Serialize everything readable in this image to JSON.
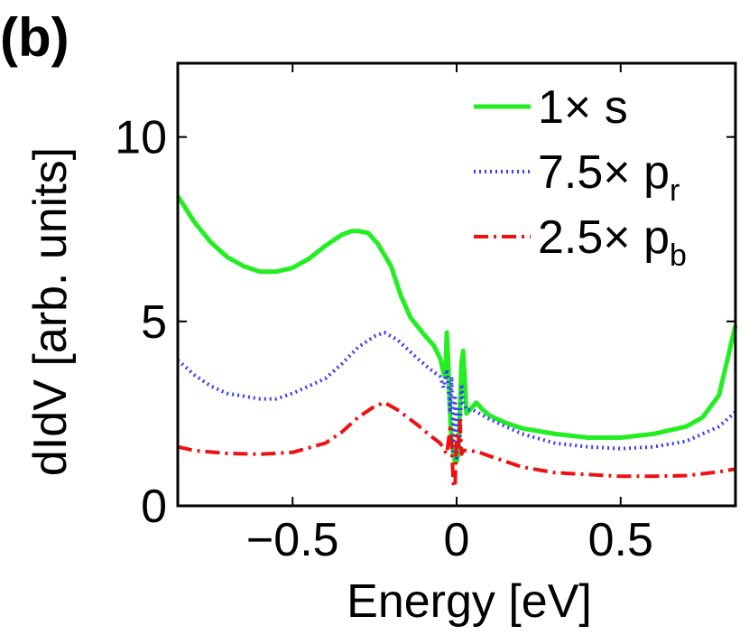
{
  "panel_label": "(b)",
  "chart_data": {
    "type": "line",
    "xlabel": "Energy [eV]",
    "ylabel": "dIdV [arb. units]",
    "xlim": [
      -0.85,
      0.85
    ],
    "ylim": [
      0,
      12
    ],
    "xticks": [
      {
        "value": -0.5,
        "label": "−0.5"
      },
      {
        "value": 0,
        "label": "0"
      },
      {
        "value": 0.5,
        "label": "0.5"
      }
    ],
    "yticks": [
      {
        "value": 0,
        "label": "0"
      },
      {
        "value": 5,
        "label": "5"
      },
      {
        "value": 10,
        "label": "10"
      }
    ],
    "grid": false,
    "legend_position": "top-right",
    "series": [
      {
        "name": "1× s",
        "legend_main": "1× s",
        "legend_sub": "",
        "color": "#22ee22",
        "style": "solid",
        "points": [
          [
            -0.85,
            8.4
          ],
          [
            -0.8,
            7.7
          ],
          [
            -0.75,
            7.15
          ],
          [
            -0.7,
            6.75
          ],
          [
            -0.65,
            6.5
          ],
          [
            -0.6,
            6.35
          ],
          [
            -0.55,
            6.35
          ],
          [
            -0.5,
            6.45
          ],
          [
            -0.45,
            6.7
          ],
          [
            -0.4,
            7.05
          ],
          [
            -0.35,
            7.35
          ],
          [
            -0.32,
            7.45
          ],
          [
            -0.3,
            7.45
          ],
          [
            -0.27,
            7.4
          ],
          [
            -0.24,
            7.1
          ],
          [
            -0.2,
            6.5
          ],
          [
            -0.17,
            5.7
          ],
          [
            -0.14,
            5.1
          ],
          [
            -0.1,
            4.65
          ],
          [
            -0.07,
            4.35
          ],
          [
            -0.05,
            4.0
          ],
          [
            -0.04,
            3.6
          ],
          [
            -0.035,
            3.5
          ],
          [
            -0.03,
            4.7
          ],
          [
            -0.025,
            3.8
          ],
          [
            -0.02,
            2.5
          ],
          [
            -0.015,
            1.7
          ],
          [
            -0.01,
            1.4
          ],
          [
            -0.005,
            1.2
          ],
          [
            0.0,
            1.2
          ],
          [
            0.005,
            1.4
          ],
          [
            0.01,
            2.6
          ],
          [
            0.015,
            3.9
          ],
          [
            0.02,
            4.2
          ],
          [
            0.025,
            3.4
          ],
          [
            0.03,
            2.5
          ],
          [
            0.04,
            2.6
          ],
          [
            0.05,
            2.7
          ],
          [
            0.06,
            2.8
          ],
          [
            0.08,
            2.6
          ],
          [
            0.1,
            2.45
          ],
          [
            0.15,
            2.25
          ],
          [
            0.2,
            2.1
          ],
          [
            0.3,
            1.95
          ],
          [
            0.4,
            1.85
          ],
          [
            0.5,
            1.85
          ],
          [
            0.6,
            1.95
          ],
          [
            0.7,
            2.15
          ],
          [
            0.75,
            2.4
          ],
          [
            0.8,
            3.0
          ],
          [
            0.85,
            4.9
          ]
        ]
      },
      {
        "name": "7.5× p_r",
        "legend_main": "7.5× p",
        "legend_sub": "r",
        "color": "#3b3bff",
        "style": "dotted",
        "points": [
          [
            -0.85,
            3.95
          ],
          [
            -0.8,
            3.55
          ],
          [
            -0.75,
            3.25
          ],
          [
            -0.7,
            3.05
          ],
          [
            -0.6,
            2.9
          ],
          [
            -0.55,
            2.9
          ],
          [
            -0.5,
            3.05
          ],
          [
            -0.4,
            3.45
          ],
          [
            -0.35,
            3.85
          ],
          [
            -0.3,
            4.3
          ],
          [
            -0.25,
            4.6
          ],
          [
            -0.22,
            4.7
          ],
          [
            -0.18,
            4.5
          ],
          [
            -0.12,
            4.0
          ],
          [
            -0.08,
            3.7
          ],
          [
            -0.05,
            3.5
          ],
          [
            -0.04,
            3.2
          ],
          [
            -0.03,
            3.7
          ],
          [
            -0.02,
            2.6
          ],
          [
            -0.015,
            3.5
          ],
          [
            -0.01,
            1.4
          ],
          [
            -0.005,
            3.0
          ],
          [
            0.0,
            1.3
          ],
          [
            0.005,
            2.7
          ],
          [
            0.01,
            1.6
          ],
          [
            0.015,
            3.3
          ],
          [
            0.02,
            2.8
          ],
          [
            0.03,
            2.6
          ],
          [
            0.05,
            2.6
          ],
          [
            0.1,
            2.35
          ],
          [
            0.2,
            1.95
          ],
          [
            0.3,
            1.7
          ],
          [
            0.4,
            1.6
          ],
          [
            0.5,
            1.55
          ],
          [
            0.6,
            1.6
          ],
          [
            0.7,
            1.75
          ],
          [
            0.8,
            2.15
          ],
          [
            0.85,
            2.55
          ]
        ]
      },
      {
        "name": "2.5× p_b",
        "legend_main": "2.5× p",
        "legend_sub": "b",
        "color": "#ee1111",
        "style": "dashdot",
        "points": [
          [
            -0.85,
            1.6
          ],
          [
            -0.8,
            1.5
          ],
          [
            -0.7,
            1.42
          ],
          [
            -0.6,
            1.4
          ],
          [
            -0.5,
            1.45
          ],
          [
            -0.4,
            1.7
          ],
          [
            -0.35,
            2.0
          ],
          [
            -0.3,
            2.4
          ],
          [
            -0.25,
            2.7
          ],
          [
            -0.22,
            2.8
          ],
          [
            -0.18,
            2.6
          ],
          [
            -0.12,
            2.2
          ],
          [
            -0.08,
            1.9
          ],
          [
            -0.05,
            1.7
          ],
          [
            -0.03,
            1.4
          ],
          [
            -0.02,
            2.1
          ],
          [
            -0.015,
            1.6
          ],
          [
            -0.01,
            0.6
          ],
          [
            -0.005,
            0.5
          ],
          [
            0.0,
            1.9
          ],
          [
            0.005,
            1.6
          ],
          [
            0.01,
            2.3
          ],
          [
            0.015,
            1.4
          ],
          [
            0.02,
            1.5
          ],
          [
            0.04,
            1.5
          ],
          [
            0.07,
            1.45
          ],
          [
            0.1,
            1.35
          ],
          [
            0.2,
            1.05
          ],
          [
            0.3,
            0.9
          ],
          [
            0.4,
            0.85
          ],
          [
            0.5,
            0.8
          ],
          [
            0.6,
            0.8
          ],
          [
            0.7,
            0.82
          ],
          [
            0.8,
            0.92
          ],
          [
            0.85,
            1.0
          ]
        ]
      }
    ]
  }
}
